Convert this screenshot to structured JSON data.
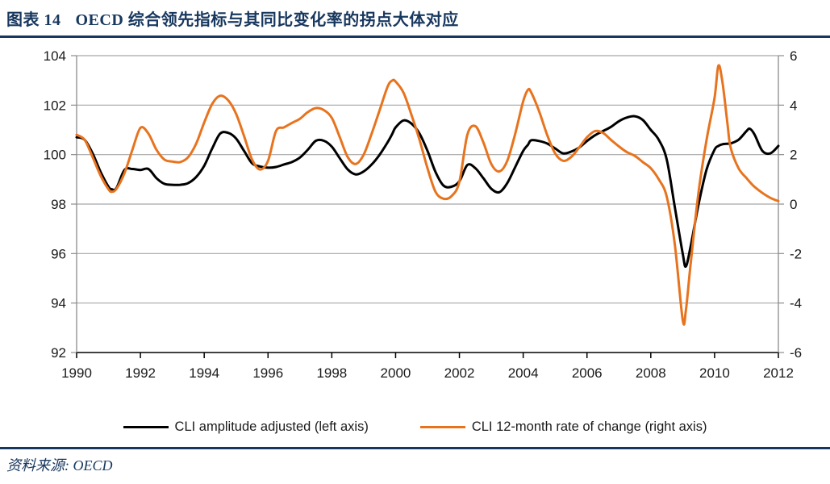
{
  "header": {
    "fig_label": "图表 14",
    "fig_title": "OECD 综合领先指标与其同比变化率的拐点大体对应"
  },
  "footer": {
    "source": "资料来源: OECD"
  },
  "colors": {
    "accent_navy": "#17375E",
    "series_black": "#000000",
    "series_orange": "#E8731E",
    "gridline": "#A6A6A6",
    "side_axis": "#8C8C8C",
    "bottom_axis": "#000000",
    "tick_label": "#1a1a1a"
  },
  "chart_data": {
    "type": "line",
    "title": "",
    "xlabel": "",
    "ylabel_left": "",
    "ylabel_right": "",
    "grid": "horizontal",
    "legend_position": "bottom",
    "x_axis": {
      "min": 1990,
      "max": 2012,
      "ticks": [
        1990,
        1992,
        1994,
        1996,
        1998,
        2000,
        2002,
        2004,
        2006,
        2008,
        2010,
        2012
      ]
    },
    "left_axis": {
      "min": 92,
      "max": 104,
      "ticks": [
        92,
        94,
        96,
        98,
        100,
        102,
        104
      ]
    },
    "right_axis": {
      "min": -6,
      "max": 6,
      "ticks": [
        -6,
        -4,
        -2,
        0,
        2,
        4,
        6
      ]
    },
    "x": [
      1990,
      1990.25,
      1990.5,
      1990.75,
      1991,
      1991.1,
      1991.25,
      1991.5,
      1991.75,
      1992,
      1992.25,
      1992.5,
      1992.75,
      1993,
      1993.25,
      1993.5,
      1993.75,
      1994,
      1994.25,
      1994.5,
      1994.75,
      1995,
      1995.25,
      1995.5,
      1995.75,
      1996,
      1996.25,
      1996.5,
      1996.75,
      1997,
      1997.25,
      1997.5,
      1997.75,
      1998,
      1998.25,
      1998.5,
      1998.75,
      1999,
      1999.25,
      1999.5,
      1999.75,
      1999.9,
      2000,
      2000.25,
      2000.5,
      2000.75,
      2001,
      2001.25,
      2001.5,
      2001.75,
      2002,
      2002.25,
      2002.5,
      2002.75,
      2003,
      2003.25,
      2003.5,
      2003.75,
      2004,
      2004.15,
      2004.25,
      2004.5,
      2004.75,
      2005,
      2005.25,
      2005.5,
      2005.75,
      2006,
      2006.25,
      2006.5,
      2006.75,
      2007,
      2007.25,
      2007.5,
      2007.75,
      2008,
      2008.25,
      2008.5,
      2008.75,
      2009,
      2009.1,
      2009.25,
      2009.5,
      2009.75,
      2010,
      2010.12,
      2010.25,
      2010.4,
      2010.5,
      2010.75,
      2011,
      2011.1,
      2011.25,
      2011.5,
      2011.75,
      2012
    ],
    "series": [
      {
        "name": "CLI amplitude adjusted (left axis)",
        "axis": "left",
        "color": "#000000",
        "values": [
          100.7,
          100.6,
          100.05,
          99.3,
          98.7,
          98.6,
          98.65,
          99.38,
          99.42,
          99.38,
          99.42,
          99.05,
          98.82,
          98.78,
          98.78,
          98.85,
          99.1,
          99.55,
          100.25,
          100.85,
          100.88,
          100.65,
          100.15,
          99.65,
          99.52,
          99.47,
          99.5,
          99.6,
          99.7,
          99.88,
          100.2,
          100.56,
          100.56,
          100.32,
          99.85,
          99.4,
          99.2,
          99.32,
          99.6,
          100.0,
          100.5,
          100.85,
          101.1,
          101.38,
          101.25,
          100.85,
          100.15,
          99.3,
          98.75,
          98.7,
          98.92,
          99.58,
          99.45,
          99.05,
          98.62,
          98.48,
          98.85,
          99.5,
          100.15,
          100.4,
          100.58,
          100.55,
          100.45,
          100.25,
          100.05,
          100.12,
          100.28,
          100.55,
          100.78,
          100.95,
          101.12,
          101.35,
          101.5,
          101.55,
          101.4,
          101.0,
          100.6,
          99.8,
          97.9,
          96.0,
          95.48,
          96.3,
          98.0,
          99.4,
          100.2,
          100.35,
          100.42,
          100.44,
          100.45,
          100.6,
          100.95,
          101.05,
          100.82,
          100.15,
          100.05,
          100.35
        ]
      },
      {
        "name": "CLI 12-month rate of change (right axis)",
        "axis": "right",
        "color": "#E8731E",
        "values": [
          2.8,
          2.6,
          1.9,
          1.15,
          0.6,
          0.5,
          0.62,
          1.25,
          2.2,
          3.08,
          2.85,
          2.2,
          1.8,
          1.72,
          1.7,
          1.9,
          2.45,
          3.3,
          4.05,
          4.38,
          4.2,
          3.65,
          2.75,
          1.8,
          1.4,
          1.75,
          2.95,
          3.1,
          3.28,
          3.45,
          3.72,
          3.88,
          3.8,
          3.48,
          2.7,
          1.9,
          1.62,
          2.0,
          2.85,
          3.8,
          4.75,
          5.0,
          4.95,
          4.5,
          3.6,
          2.6,
          1.45,
          0.5,
          0.22,
          0.32,
          0.9,
          2.8,
          3.15,
          2.5,
          1.62,
          1.32,
          1.75,
          2.85,
          4.15,
          4.62,
          4.52,
          3.75,
          2.8,
          2.05,
          1.75,
          1.9,
          2.28,
          2.7,
          2.95,
          2.88,
          2.6,
          2.33,
          2.1,
          1.95,
          1.7,
          1.45,
          1.0,
          0.3,
          -1.6,
          -4.68,
          -4.3,
          -2.4,
          0.5,
          2.6,
          4.3,
          5.6,
          4.9,
          3.3,
          2.3,
          1.45,
          1.05,
          0.9,
          0.7,
          0.45,
          0.25,
          0.12
        ]
      }
    ]
  }
}
